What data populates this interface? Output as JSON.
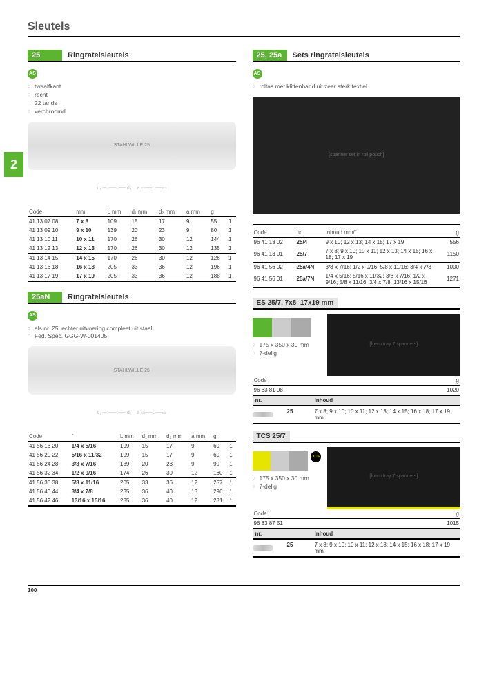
{
  "page_title": "Sleutels",
  "section_number": "2",
  "page_number": "100",
  "p25": {
    "num": "25",
    "title": "Ringratelsleutels",
    "bullets": [
      "twaalfkant",
      "recht",
      "22 tands",
      "verchroomd"
    ],
    "cols": [
      "Code",
      "mm",
      "L mm",
      "d₁ mm",
      "d₂ mm",
      "a mm",
      "g",
      ""
    ],
    "groups": [
      [
        [
          "41 13 07 08",
          "7 x 8",
          "109",
          "15",
          "17",
          "9",
          "55",
          "1"
        ],
        [
          "41 13 09 10",
          "9 x 10",
          "139",
          "20",
          "23",
          "9",
          "80",
          "1"
        ],
        [
          "41 13 10 11",
          "10 x 11",
          "170",
          "26",
          "30",
          "12",
          "144",
          "1"
        ],
        [
          "41 13 12 13",
          "12 x 13",
          "170",
          "26",
          "30",
          "12",
          "135",
          "1"
        ]
      ],
      [
        [
          "41 13 14 15",
          "14 x 15",
          "170",
          "26",
          "30",
          "12",
          "126",
          "1"
        ],
        [
          "41 13 16 18",
          "16 x 18",
          "205",
          "33",
          "36",
          "12",
          "196",
          "1"
        ],
        [
          "41 13 17 19",
          "17 x 19",
          "205",
          "33",
          "36",
          "12",
          "188",
          "1"
        ]
      ]
    ]
  },
  "p25aN": {
    "num": "25aN",
    "title": "Ringratelsleutels",
    "bullets": [
      "als nr. 25, echter uitvoering compleet uit staal",
      "Fed. Spec. GGG-W-001405"
    ],
    "cols": [
      "Code",
      "\"",
      "L mm",
      "d₁ mm",
      "d₂ mm",
      "a mm",
      "g",
      ""
    ],
    "groups": [
      [
        [
          "41 56 16 20",
          "1/4 x 5/16",
          "109",
          "15",
          "17",
          "9",
          "60",
          "1"
        ],
        [
          "41 56 20 22",
          "5/16 x 11/32",
          "109",
          "15",
          "17",
          "9",
          "60",
          "1"
        ],
        [
          "41 56 24 28",
          "3/8 x 7/16",
          "139",
          "20",
          "23",
          "9",
          "90",
          "1"
        ],
        [
          "41 56 32 34",
          "1/2 x 9/16",
          "174",
          "26",
          "30",
          "12",
          "160",
          "1"
        ]
      ],
      [
        [
          "41 56 36 38",
          "5/8 x 11/16",
          "205",
          "33",
          "36",
          "12",
          "257",
          "1"
        ],
        [
          "41 56 40 44",
          "3/4 x 7/8",
          "235",
          "36",
          "40",
          "13",
          "296",
          "1"
        ],
        [
          "41 56 42 46",
          "13/16 x 15/16",
          "235",
          "36",
          "40",
          "12",
          "281",
          "1"
        ]
      ]
    ]
  },
  "p25sets": {
    "num": "25, 25a",
    "title": "Sets ringratelsleutels",
    "bullets": [
      "roltas met klittenband uit zeer sterk textiel"
    ],
    "cols": [
      "Code",
      "nr.",
      "Inhoud mm/\"",
      "g"
    ],
    "groups": [
      [
        [
          "96 41 13 02",
          "25/4",
          "9 x 10; 12 x 13; 14 x 15; 17 x 19",
          "556"
        ],
        [
          "96 41 13 01",
          "25/7",
          "7 x 8; 9 x 10; 10 x 11; 12 x 13; 14 x 15; 16 x 18; 17 x 19",
          "1150"
        ]
      ],
      [
        [
          "96 41 56 02",
          "25a/4N",
          "3/8 x 7/16; 1/2 x 9/16; 5/8 x 11/16; 3/4 x 7/8",
          "1000"
        ],
        [
          "96 41 56 01",
          "25a/7N",
          "1/4 x 5/16; 5/16 x 11/32; 3/8 x 7/16; 1/2 x 9/16; 5/8 x 11/16; 3/4 x 7/8; 13/16 x 15/16",
          "1271"
        ]
      ]
    ]
  },
  "es257": {
    "title": "ES 25/7, 7x8–17x19 mm",
    "dims": "175 x 350 x 30 mm",
    "delig": "7-delig",
    "code_label": "Code",
    "g_label": "g",
    "code": "96 83 81 08",
    "g": "1020",
    "nr_label": "nr.",
    "inhoud_label": "Inhoud",
    "nr": "25",
    "inhoud": "7 x 8; 9 x 10; 10 x 11; 12 x 13; 14 x 15; 16 x 18; 17 x 19 mm"
  },
  "tcs257": {
    "title": "TCS 25/7",
    "dims": "175 x 350 x 30 mm",
    "delig": "7-delig",
    "code_label": "Code",
    "g_label": "g",
    "code": "96 83 87 51",
    "g": "1015",
    "nr_label": "nr.",
    "inhoud_label": "Inhoud",
    "nr": "25",
    "inhoud": "7 x 8; 9 x 10; 10 x 11; 12 x 13; 14 x 15; 16 x 18; 17 x 19 mm"
  }
}
